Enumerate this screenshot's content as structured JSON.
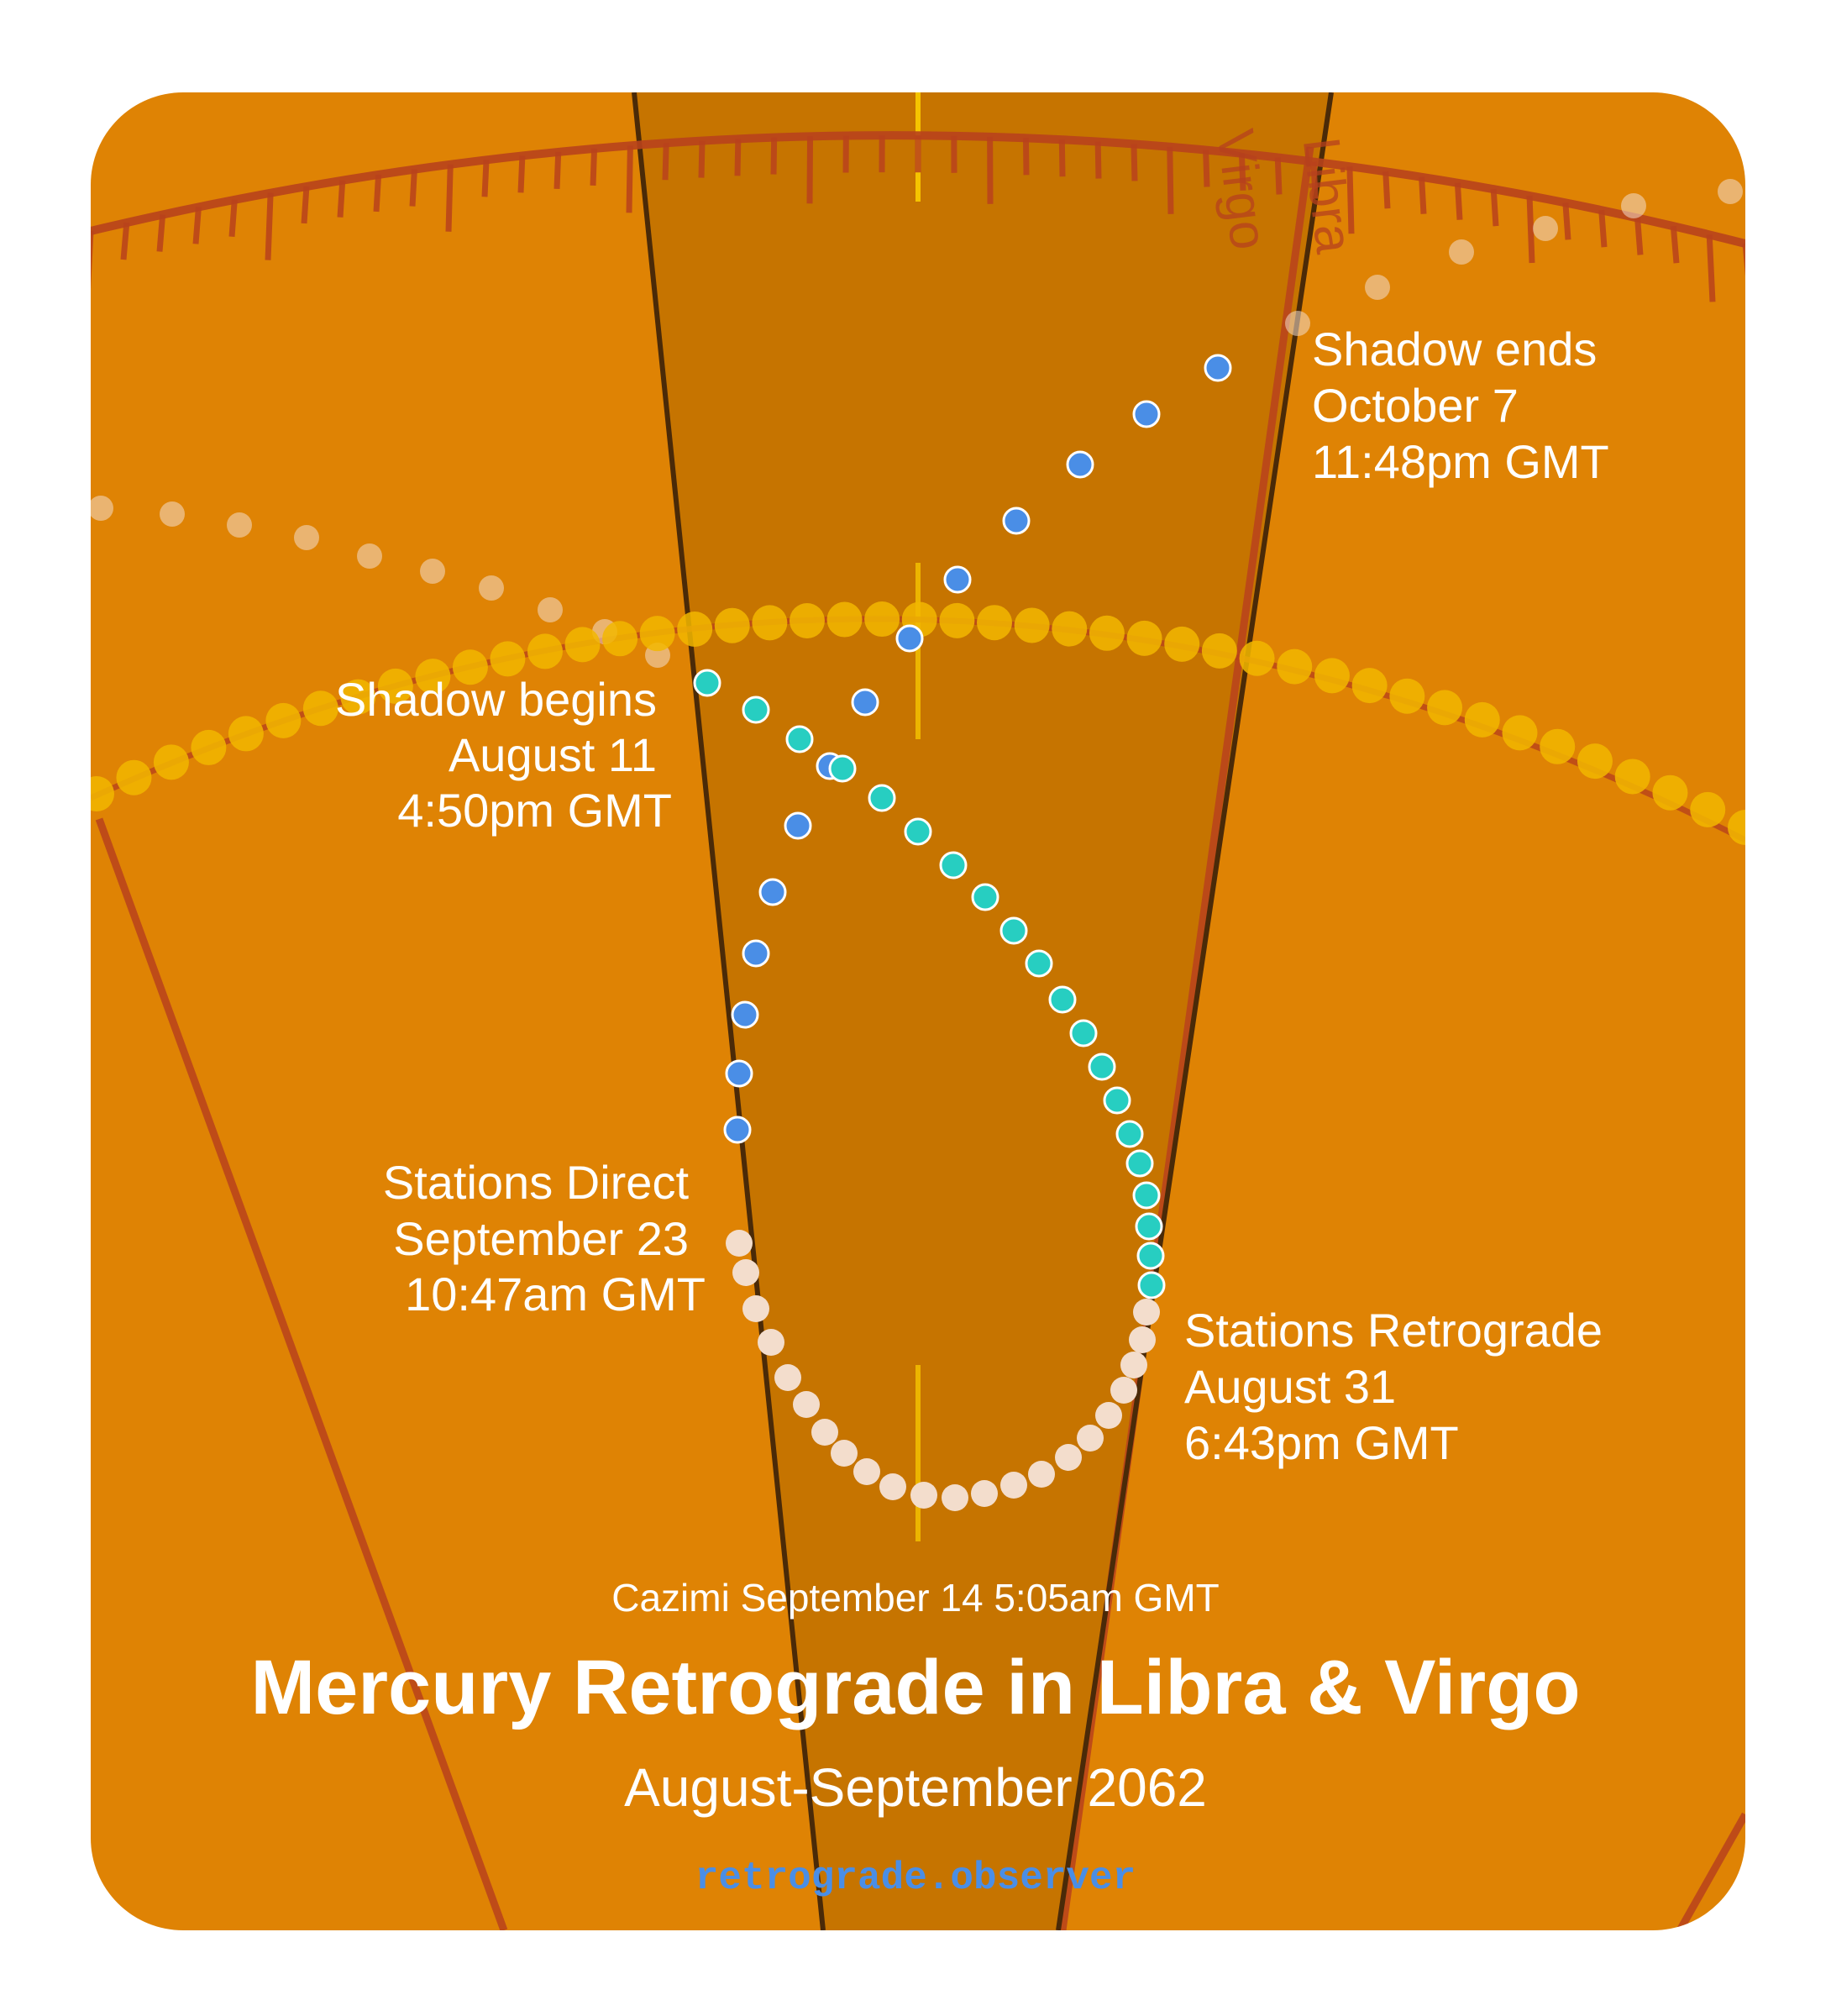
{
  "colors": {
    "background": "#df8304",
    "shadow_band": "#c67400",
    "ecliptic_line": "#b8421c",
    "sun_dots": "#f2b700",
    "shadow_dots": "#4a8ee6",
    "retro_dots": "#27cec1",
    "direct_dots": "#f3ddcc",
    "site_text": "#4a8ee6"
  },
  "signs": {
    "left": "Virgo",
    "right": "Libra"
  },
  "events": {
    "shadow_begins": {
      "title": "Shadow begins",
      "date": "August 11",
      "time": "4:50pm GMT"
    },
    "shadow_ends": {
      "title": "Shadow ends",
      "date": "October 7",
      "time": "11:48pm GMT"
    },
    "stations_retrograde": {
      "title": "Stations Retrograde",
      "date": "August 31",
      "time": "6:43pm GMT"
    },
    "stations_direct": {
      "title": "Stations Direct",
      "date": "September 23",
      "time": "10:47am GMT"
    }
  },
  "cazimi": "Cazimi September 14 5:05am GMT",
  "title": "Mercury Retrograde in Libra & Virgo",
  "subtitle": "August-September 2062",
  "site": "retrograde.observer"
}
